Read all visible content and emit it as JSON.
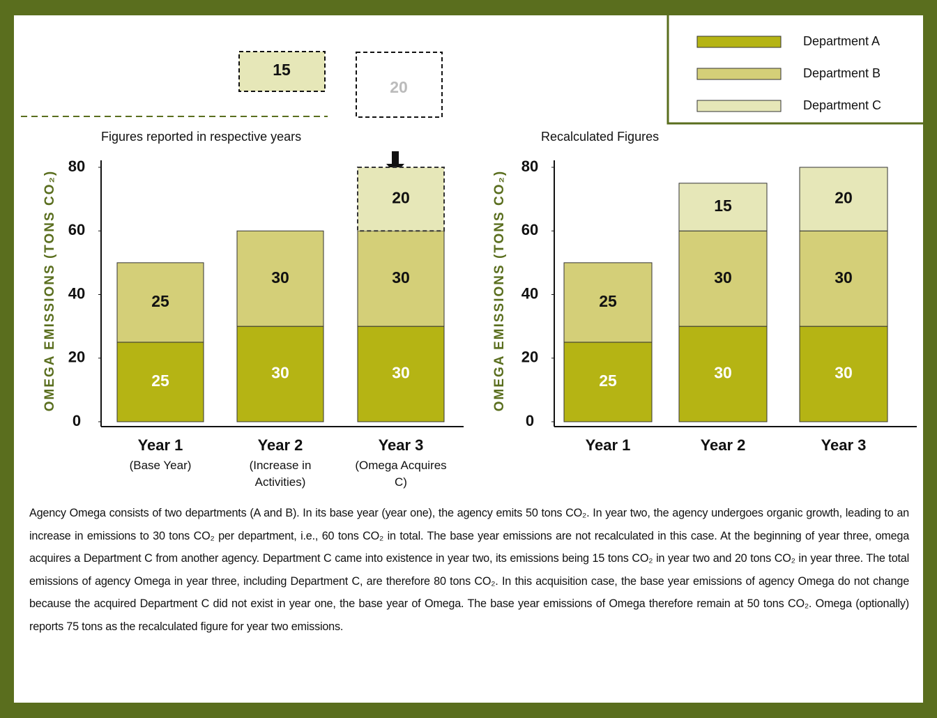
{
  "chart_data": [
    {
      "type": "bar",
      "stacked": true,
      "title": "Figures reported in respective years",
      "ylabel": "OMEGA EMISSIONS (TONS CO₂)",
      "categories": [
        "Year 1",
        "Year 2",
        "Year 3"
      ],
      "category_notes": [
        "(Base Year)",
        "(Increase in Activities)",
        "(Omega Acquires C)"
      ],
      "series": [
        {
          "color": "#b5b414",
          "values": [
            25,
            30,
            30
          ]
        },
        {
          "color": "#d4cf78",
          "values": [
            25,
            30,
            30
          ]
        },
        {
          "color": "#e6e7b8",
          "values": [
            null,
            null,
            20
          ]
        }
      ],
      "annotations": [
        15,
        20
      ],
      "ylim": [
        0,
        80
      ],
      "yticks": [
        0,
        20,
        40,
        60,
        80
      ]
    },
    {
      "type": "bar",
      "stacked": true,
      "title": "Recalculated Figures",
      "ylabel": "OMEGA EMISSIONS (TONS CO₂)",
      "categories": [
        "Year 1",
        "Year 2",
        "Year 3"
      ],
      "series": [
        {
          "name": "Department A",
          "color": "#b5b414",
          "values": [
            25,
            30,
            30
          ]
        },
        {
          "name": "Department B",
          "color": "#d4cf78",
          "values": [
            25,
            30,
            30
          ]
        },
        {
          "name": "Department C",
          "color": "#e6e7b8",
          "values": [
            null,
            15,
            20
          ]
        }
      ],
      "ylim": [
        0,
        80
      ],
      "yticks": [
        0,
        20,
        40,
        60,
        80
      ]
    }
  ],
  "description": "Agency Omega consists of two departments (A and B). In its base year (year one), the agency emits 50 tons CO₂. In year two, the agency undergoes organic growth, leading to an increase in emissions to 30 tons CO₂ per department, i.e., 60 tons CO₂ in total. The base year emissions are not recalculated in this case. At the beginning of year three, omega acquires a Department C from another agency. Department C came into existence in year two, its emissions being 15 tons CO₂ in year two and 20 tons CO₂ in year three. The total emissions of agency Omega in year three, including Department C, are therefore 80 tons CO₂. In this acquisition case, the base year emissions of agency Omega do not change because the acquired Department C did not exist in year one, the base year of Omega. The base year emissions of Omega therefore remain at 50 tons CO₂. Omega (optionally) reports 75 tons as the recalculated figure for year two emissions."
}
